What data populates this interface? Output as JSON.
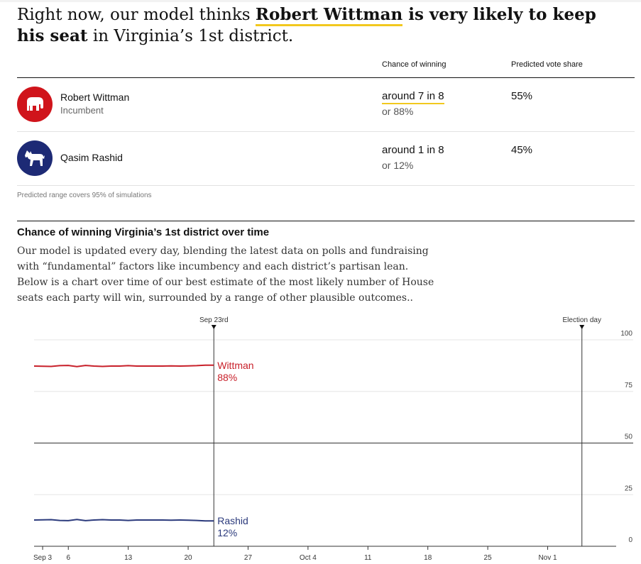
{
  "headline": {
    "pre": "Right now, our model thinks ",
    "name": "Robert Wittman",
    "mid": " is very likely to keep his seat",
    "post": " in Virginia’s 1st district."
  },
  "table": {
    "col_chance": "Chance of winning",
    "col_share": "Predicted vote share",
    "candidates": [
      {
        "name": "Robert Wittman",
        "status": "Incumbent",
        "odds": "around 7 in 8",
        "pct": "or 88%",
        "share": "55%",
        "party_icon": "elephant-icon",
        "color": "#d0141b"
      },
      {
        "name": "Qasim Rashid",
        "status": "",
        "odds": "around 1 in 8",
        "pct": "or 12%",
        "share": "45%",
        "party_icon": "donkey-icon",
        "color": "#1d2a75"
      }
    ],
    "footnote": "Predicted range covers 95% of simulations"
  },
  "section": {
    "title": "Chance of winning Virginia’s 1st district over time",
    "description": "Our model is updated every day, blending the latest data on polls and fundraising with “fundamental” factors like incumbency and each district’s partisan lean. Below is a chart over time of our best estimate of the most likely number of House seats each party will win, surrounded by a range of other plausible outcomes.."
  },
  "chart_data": {
    "type": "line",
    "x_start": "Sep 2",
    "x_end": "Nov 9",
    "ylim": [
      0,
      100
    ],
    "y_ticks": [
      0,
      25,
      50,
      75,
      100
    ],
    "x_tick_labels": [
      {
        "label": "Sep 3",
        "day": 1
      },
      {
        "label": "6",
        "day": 4
      },
      {
        "label": "13",
        "day": 11
      },
      {
        "label": "20",
        "day": 18
      },
      {
        "label": "27",
        "day": 25
      },
      {
        "label": "Oct 4",
        "day": 32
      },
      {
        "label": "11",
        "day": 39
      },
      {
        "label": "18",
        "day": 46
      },
      {
        "label": "25",
        "day": 53
      },
      {
        "label": "Nov 1",
        "day": 60
      }
    ],
    "markers": [
      {
        "label": "Sep 23rd",
        "day": 21
      },
      {
        "label": "Election day",
        "day": 64
      }
    ],
    "series": [
      {
        "name": "Wittman",
        "color": "#c8202a",
        "end_label": "88%",
        "values": [
          87.3,
          87.2,
          87.1,
          87.5,
          87.6,
          87.0,
          87.6,
          87.3,
          87.1,
          87.3,
          87.3,
          87.5,
          87.3,
          87.3,
          87.3,
          87.3,
          87.4,
          87.3,
          87.4,
          87.5,
          87.7,
          87.7
        ]
      },
      {
        "name": "Rashid",
        "color": "#2b3a7c",
        "end_label": "12%",
        "values": [
          12.7,
          12.8,
          12.9,
          12.5,
          12.4,
          13.0,
          12.4,
          12.7,
          12.9,
          12.7,
          12.7,
          12.5,
          12.7,
          12.7,
          12.7,
          12.7,
          12.6,
          12.7,
          12.6,
          12.5,
          12.3,
          12.3
        ]
      }
    ]
  }
}
